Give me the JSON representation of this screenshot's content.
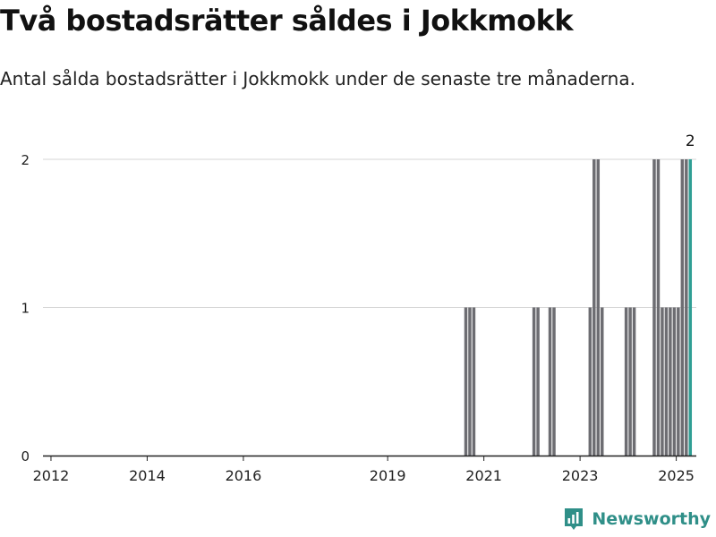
{
  "header": {
    "title": "Två bostadsrätter såldes i Jokkmokk",
    "subtitle": "Antal sålda bostadsrätter i Jokkmokk under de senaste tre månaderna."
  },
  "brand": {
    "name": "Newsworthy",
    "icon": "newsworthy-logo-icon",
    "color": "#2f8f88"
  },
  "chart_data": {
    "type": "bar",
    "title": "Två bostadsrätter såldes i Jokkmokk",
    "subtitle": "Antal sålda bostadsrätter i Jokkmokk under de senaste tre månaderna.",
    "xlabel": "",
    "ylabel": "",
    "ylim": [
      0,
      2
    ],
    "yticks": [
      "0",
      "1",
      "2"
    ],
    "xticks": [
      "2012",
      "2014",
      "2016",
      "2019",
      "2021",
      "2023",
      "2025"
    ],
    "grid": true,
    "bar_color": "#6d6d72",
    "highlight_color": "#2f9e94",
    "x_unit": "month",
    "x_start": "2011-11",
    "x_end": "2025-06",
    "values_nonzero": [
      {
        "month": "2020-08",
        "value": 1
      },
      {
        "month": "2020-09",
        "value": 1
      },
      {
        "month": "2020-10",
        "value": 1
      },
      {
        "month": "2022-01",
        "value": 1
      },
      {
        "month": "2022-02",
        "value": 1
      },
      {
        "month": "2022-05",
        "value": 1
      },
      {
        "month": "2022-06",
        "value": 1
      },
      {
        "month": "2023-03",
        "value": 1
      },
      {
        "month": "2023-04",
        "value": 2
      },
      {
        "month": "2023-05",
        "value": 2
      },
      {
        "month": "2023-06",
        "value": 1
      },
      {
        "month": "2023-12",
        "value": 1
      },
      {
        "month": "2024-01",
        "value": 1
      },
      {
        "month": "2024-02",
        "value": 1
      },
      {
        "month": "2024-07",
        "value": 2
      },
      {
        "month": "2024-08",
        "value": 2
      },
      {
        "month": "2024-09",
        "value": 1
      },
      {
        "month": "2024-10",
        "value": 1
      },
      {
        "month": "2024-11",
        "value": 1
      },
      {
        "month": "2024-12",
        "value": 1
      },
      {
        "month": "2025-01",
        "value": 1
      },
      {
        "month": "2025-02",
        "value": 2
      },
      {
        "month": "2025-03",
        "value": 2
      },
      {
        "month": "2025-04",
        "value": 2
      }
    ],
    "highlight": {
      "month": "2025-04",
      "value": 2,
      "label": "2"
    }
  }
}
